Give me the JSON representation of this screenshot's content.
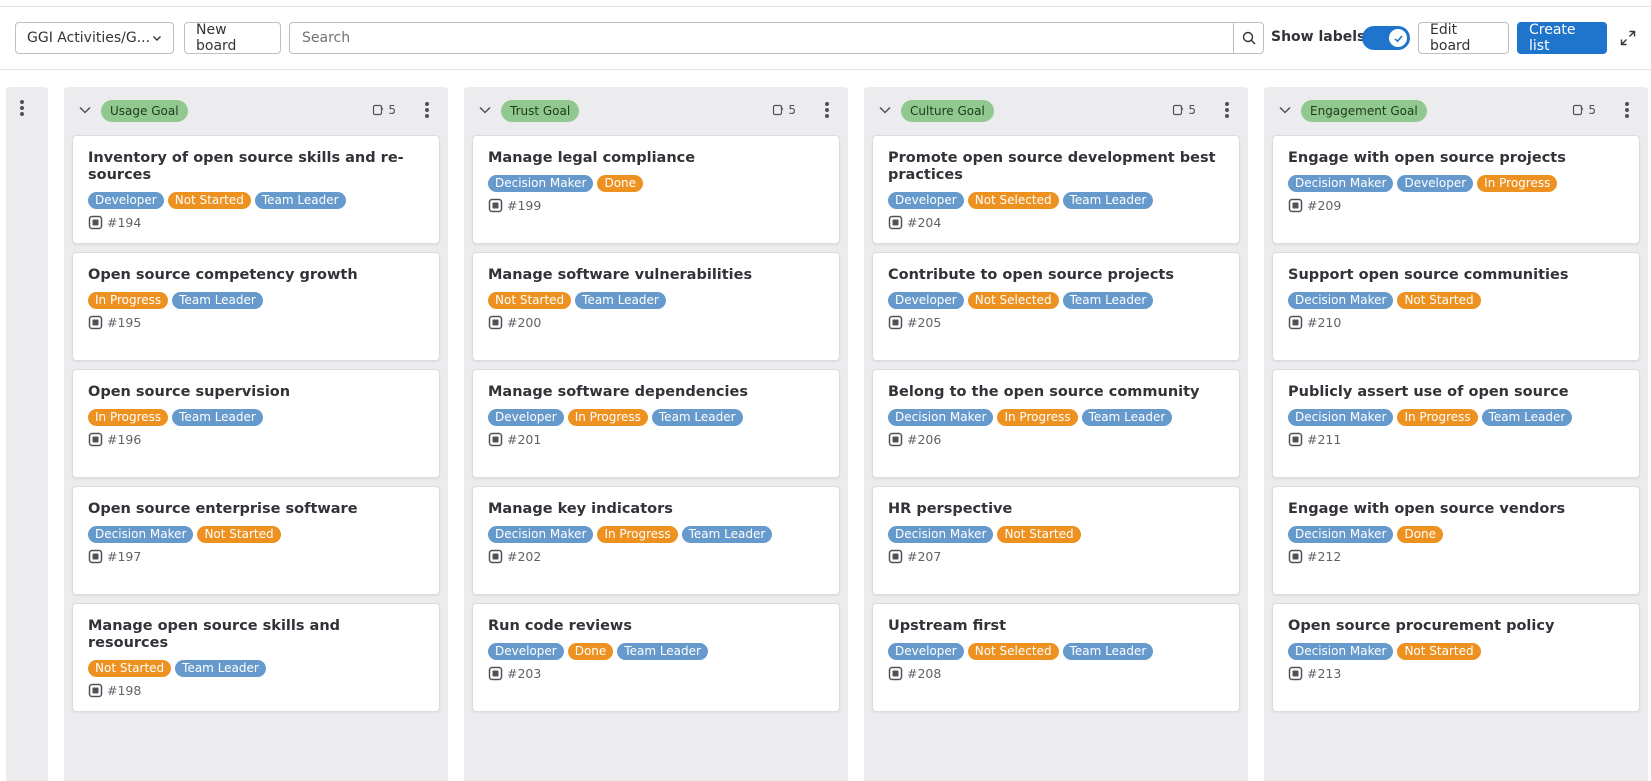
{
  "toolbar": {
    "board_select": "GGI Activities/G...",
    "new_board": "New board",
    "search_placeholder": "Search",
    "show_labels": "Show labels",
    "show_labels_on": true,
    "edit_board": "Edit board",
    "create_list": "Create list"
  },
  "colors": {
    "accent": "#1f75cb",
    "label_blue": "#6699cc",
    "label_orange": "#ed9121",
    "goal_green": "#91c88f"
  },
  "lists": [
    {
      "title": "Usage Goal",
      "count": "5",
      "cards": [
        {
          "title": "Inventory of open source skills and re-sources",
          "labels": [
            {
              "text": "Developer",
              "color": "#6699cc"
            },
            {
              "text": "Not Started",
              "color": "#ed9121"
            },
            {
              "text": "Team Leader",
              "color": "#6699cc"
            }
          ],
          "ref": "#194"
        },
        {
          "title": "Open source competency growth",
          "labels": [
            {
              "text": "In Progress",
              "color": "#ed9121"
            },
            {
              "text": "Team Leader",
              "color": "#6699cc"
            }
          ],
          "ref": "#195"
        },
        {
          "title": "Open source supervision",
          "labels": [
            {
              "text": "In Progress",
              "color": "#ed9121"
            },
            {
              "text": "Team Leader",
              "color": "#6699cc"
            }
          ],
          "ref": "#196"
        },
        {
          "title": "Open source enterprise software",
          "labels": [
            {
              "text": "Decision Maker",
              "color": "#6699cc"
            },
            {
              "text": "Not Started",
              "color": "#ed9121"
            }
          ],
          "ref": "#197"
        },
        {
          "title": "Manage open source skills and resources",
          "labels": [
            {
              "text": "Not Started",
              "color": "#ed9121"
            },
            {
              "text": "Team Leader",
              "color": "#6699cc"
            }
          ],
          "ref": "#198"
        }
      ]
    },
    {
      "title": "Trust Goal",
      "count": "5",
      "cards": [
        {
          "title": "Manage legal compliance",
          "labels": [
            {
              "text": "Decision Maker",
              "color": "#6699cc"
            },
            {
              "text": "Done",
              "color": "#ed9121"
            }
          ],
          "ref": "#199"
        },
        {
          "title": "Manage software vulnerabilities",
          "labels": [
            {
              "text": "Not Started",
              "color": "#ed9121"
            },
            {
              "text": "Team Leader",
              "color": "#6699cc"
            }
          ],
          "ref": "#200"
        },
        {
          "title": "Manage software dependencies",
          "labels": [
            {
              "text": "Developer",
              "color": "#6699cc"
            },
            {
              "text": "In Progress",
              "color": "#ed9121"
            },
            {
              "text": "Team Leader",
              "color": "#6699cc"
            }
          ],
          "ref": "#201"
        },
        {
          "title": "Manage key indicators",
          "labels": [
            {
              "text": "Decision Maker",
              "color": "#6699cc"
            },
            {
              "text": "In Progress",
              "color": "#ed9121"
            },
            {
              "text": "Team Leader",
              "color": "#6699cc"
            }
          ],
          "ref": "#202"
        },
        {
          "title": "Run code reviews",
          "labels": [
            {
              "text": "Developer",
              "color": "#6699cc"
            },
            {
              "text": "Done",
              "color": "#ed9121"
            },
            {
              "text": "Team Leader",
              "color": "#6699cc"
            }
          ],
          "ref": "#203"
        }
      ]
    },
    {
      "title": "Culture Goal",
      "count": "5",
      "cards": [
        {
          "title": "Promote open source development best practices",
          "labels": [
            {
              "text": "Developer",
              "color": "#6699cc"
            },
            {
              "text": "Not Selected",
              "color": "#ed9121"
            },
            {
              "text": "Team Leader",
              "color": "#6699cc"
            }
          ],
          "ref": "#204"
        },
        {
          "title": "Contribute to open source projects",
          "labels": [
            {
              "text": "Developer",
              "color": "#6699cc"
            },
            {
              "text": "Not Selected",
              "color": "#ed9121"
            },
            {
              "text": "Team Leader",
              "color": "#6699cc"
            }
          ],
          "ref": "#205"
        },
        {
          "title": "Belong to the open source community",
          "labels": [
            {
              "text": "Decision Maker",
              "color": "#6699cc"
            },
            {
              "text": "In Progress",
              "color": "#ed9121"
            },
            {
              "text": "Team Leader",
              "color": "#6699cc"
            }
          ],
          "ref": "#206"
        },
        {
          "title": "HR perspective",
          "labels": [
            {
              "text": "Decision Maker",
              "color": "#6699cc"
            },
            {
              "text": "Not Started",
              "color": "#ed9121"
            }
          ],
          "ref": "#207"
        },
        {
          "title": "Upstream first",
          "labels": [
            {
              "text": "Developer",
              "color": "#6699cc"
            },
            {
              "text": "Not Selected",
              "color": "#ed9121"
            },
            {
              "text": "Team Leader",
              "color": "#6699cc"
            }
          ],
          "ref": "#208"
        }
      ]
    },
    {
      "title": "Engagement Goal",
      "count": "5",
      "cards": [
        {
          "title": "Engage with open source projects",
          "labels": [
            {
              "text": "Decision Maker",
              "color": "#6699cc"
            },
            {
              "text": "Developer",
              "color": "#6699cc"
            },
            {
              "text": "In Progress",
              "color": "#ed9121"
            }
          ],
          "ref": "#209"
        },
        {
          "title": "Support open source communities",
          "labels": [
            {
              "text": "Decision Maker",
              "color": "#6699cc"
            },
            {
              "text": "Not Started",
              "color": "#ed9121"
            }
          ],
          "ref": "#210"
        },
        {
          "title": "Publicly assert use of open source",
          "labels": [
            {
              "text": "Decision Maker",
              "color": "#6699cc"
            },
            {
              "text": "In Progress",
              "color": "#ed9121"
            },
            {
              "text": "Team Leader",
              "color": "#6699cc"
            }
          ],
          "ref": "#211"
        },
        {
          "title": "Engage with open source vendors",
          "labels": [
            {
              "text": "Decision Maker",
              "color": "#6699cc"
            },
            {
              "text": "Done",
              "color": "#ed9121"
            }
          ],
          "ref": "#212"
        },
        {
          "title": "Open source procurement policy",
          "labels": [
            {
              "text": "Decision Maker",
              "color": "#6699cc"
            },
            {
              "text": "Not Started",
              "color": "#ed9121"
            }
          ],
          "ref": "#213"
        }
      ]
    }
  ]
}
